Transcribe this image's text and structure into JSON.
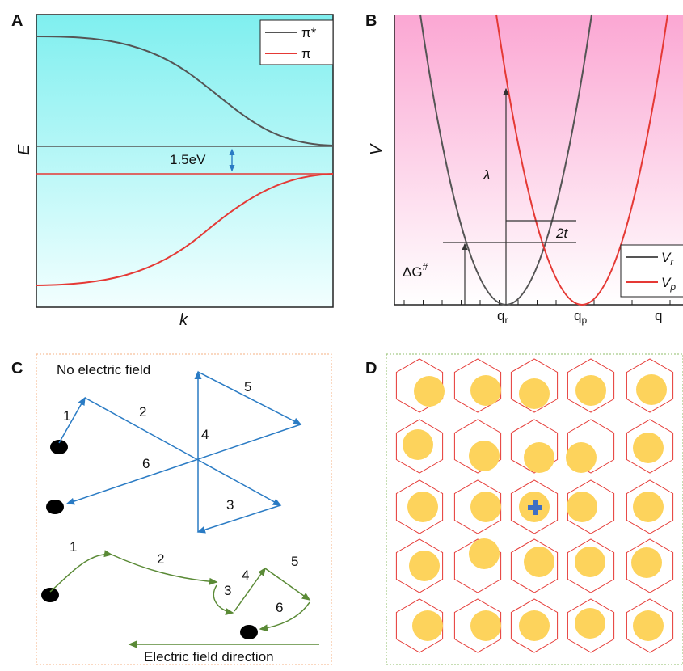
{
  "panel_a": {
    "label": "A",
    "y_label": "E",
    "x_label": "k",
    "legend": [
      "π*",
      "π"
    ],
    "gap_label": "1.5eV"
  },
  "panel_b": {
    "label": "B",
    "y_label": "V",
    "lambda": "λ",
    "coupling": "2t",
    "barrier": {
      "main": "ΔG",
      "sup": "#"
    },
    "legend": [
      {
        "main": "V",
        "sub": "r"
      },
      {
        "main": "V",
        "sub": "p"
      }
    ],
    "ticks": [
      {
        "main": "q",
        "sub": "r"
      },
      {
        "main": "q",
        "sub": "p"
      },
      {
        "main": "q"
      }
    ]
  },
  "panel_c": {
    "label": "C",
    "top_title": "No electric field",
    "top_steps": [
      "1",
      "2",
      "3",
      "4",
      "5",
      "6"
    ],
    "bottom_steps": [
      "1",
      "2",
      "3",
      "4",
      "5",
      "6"
    ],
    "bottom_title": "Electric field direction"
  },
  "panel_d": {
    "label": "D"
  }
}
